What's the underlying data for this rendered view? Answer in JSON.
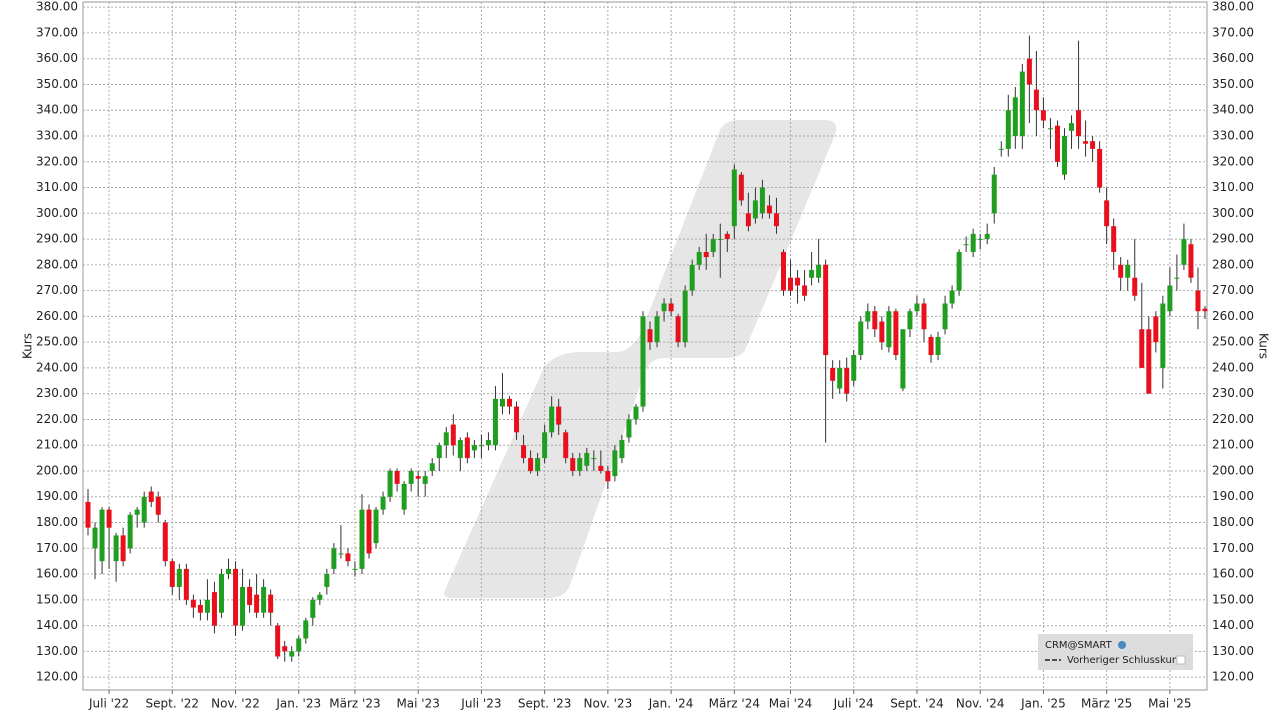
{
  "chart_data": {
    "type": "candlestick",
    "name": "CRM@SMART",
    "reference_line_label": "Vorheriger Schlusskurs",
    "y_label": "Kurs",
    "up_color": "#1f9e1f",
    "down_color": "#e8101c",
    "grid": true,
    "legend_position": "lower-right",
    "ylim": [
      115,
      382
    ],
    "yticks": [
      {
        "value": 120,
        "label": "120.00"
      },
      {
        "value": 130,
        "label": "130.00"
      },
      {
        "value": 140,
        "label": "140.00"
      },
      {
        "value": 150,
        "label": "150.00"
      },
      {
        "value": 160,
        "label": "160.00"
      },
      {
        "value": 170,
        "label": "170.00"
      },
      {
        "value": 180,
        "label": "180.00"
      },
      {
        "value": 190,
        "label": "190.00"
      },
      {
        "value": 200,
        "label": "200.00"
      },
      {
        "value": 210,
        "label": "210.00"
      },
      {
        "value": 220,
        "label": "220.00"
      },
      {
        "value": 230,
        "label": "230.00"
      },
      {
        "value": 240,
        "label": "240.00"
      },
      {
        "value": 250,
        "label": "250.00"
      },
      {
        "value": 260,
        "label": "260.00"
      },
      {
        "value": 270,
        "label": "270.00"
      },
      {
        "value": 280,
        "label": "280.00"
      },
      {
        "value": 290,
        "label": "290.00"
      },
      {
        "value": 300,
        "label": "300.00"
      },
      {
        "value": 310,
        "label": "310.00"
      },
      {
        "value": 320,
        "label": "320.00"
      },
      {
        "value": 330,
        "label": "330.00"
      },
      {
        "value": 340,
        "label": "340.00"
      },
      {
        "value": 350,
        "label": "350.00"
      },
      {
        "value": 360,
        "label": "360.00"
      },
      {
        "value": 370,
        "label": "370.00"
      },
      {
        "value": 380,
        "label": "380.00"
      }
    ],
    "categories": [
      null,
      null,
      null,
      "Juli '22",
      null,
      null,
      null,
      null,
      null,
      null,
      null,
      null,
      "Sept. '22",
      null,
      null,
      null,
      null,
      null,
      null,
      null,
      null,
      "Nov. '22",
      null,
      null,
      null,
      null,
      null,
      null,
      null,
      null,
      "Jan. '23",
      null,
      null,
      null,
      null,
      null,
      null,
      null,
      "März '23",
      null,
      null,
      null,
      null,
      null,
      null,
      null,
      null,
      "Mai '23",
      null,
      null,
      null,
      null,
      null,
      null,
      null,
      null,
      "Juli '23",
      null,
      null,
      null,
      null,
      null,
      null,
      null,
      null,
      "Sept. '23",
      null,
      null,
      null,
      null,
      null,
      null,
      null,
      null,
      "Nov. '23",
      null,
      null,
      null,
      null,
      null,
      null,
      null,
      null,
      "Jan. '24",
      null,
      null,
      null,
      null,
      null,
      null,
      null,
      null,
      "März '24",
      null,
      null,
      null,
      null,
      null,
      null,
      null,
      "Mai '24",
      null,
      null,
      null,
      null,
      null,
      null,
      null,
      null,
      "Juli '24",
      null,
      null,
      null,
      null,
      null,
      null,
      null,
      null,
      "Sept. '24",
      null,
      null,
      null,
      null,
      null,
      null,
      null,
      null,
      "Nov. '24",
      null,
      null,
      null,
      null,
      null,
      null,
      null,
      null,
      "Jan. '25",
      null,
      null,
      null,
      null,
      null,
      null,
      null,
      null,
      "März '25",
      null,
      null,
      null,
      null,
      null,
      null,
      null,
      null,
      "Mai '25",
      null,
      null,
      null,
      null,
      null
    ],
    "ohlc": [
      [
        188,
        193,
        175,
        178
      ],
      [
        170,
        180,
        158,
        178
      ],
      [
        165,
        186,
        160,
        185
      ],
      [
        185,
        186,
        162,
        178
      ],
      [
        165,
        176,
        157,
        175
      ],
      [
        175,
        178,
        163,
        165
      ],
      [
        170,
        184,
        168,
        183
      ],
      [
        183,
        186,
        178,
        185
      ],
      [
        180,
        192,
        178,
        190
      ],
      [
        192,
        194,
        186,
        188
      ],
      [
        190,
        192,
        180,
        183
      ],
      [
        180,
        181,
        163,
        165
      ],
      [
        165,
        166,
        152,
        155
      ],
      [
        155,
        164,
        150,
        162
      ],
      [
        162,
        164,
        148,
        150
      ],
      [
        150,
        152,
        143,
        147
      ],
      [
        148,
        150,
        142,
        145
      ],
      [
        145,
        158,
        142,
        150
      ],
      [
        153,
        157,
        137,
        140
      ],
      [
        145,
        162,
        143,
        160
      ],
      [
        160,
        166,
        158,
        162
      ],
      [
        162,
        165,
        136,
        140
      ],
      [
        140,
        162,
        138,
        155
      ],
      [
        155,
        158,
        145,
        148
      ],
      [
        152,
        160,
        143,
        145
      ],
      [
        145,
        158,
        143,
        155
      ],
      [
        152,
        154,
        140,
        145
      ],
      [
        140,
        141,
        127,
        128
      ],
      [
        132,
        134,
        126,
        130
      ],
      [
        128,
        132,
        126,
        130
      ],
      [
        130,
        136,
        128,
        135
      ],
      [
        135,
        143,
        133,
        142
      ],
      [
        143,
        151,
        140,
        150
      ],
      [
        150,
        153,
        148,
        152
      ],
      [
        155,
        162,
        152,
        160
      ],
      [
        162,
        172,
        160,
        170
      ],
      [
        168,
        179,
        166,
        168
      ],
      [
        168,
        170,
        163,
        165
      ],
      [
        162,
        165,
        159,
        162
      ],
      [
        162,
        191,
        160,
        185
      ],
      [
        185,
        187,
        166,
        168
      ],
      [
        172,
        186,
        170,
        185
      ],
      [
        185,
        192,
        183,
        190
      ],
      [
        190,
        201,
        188,
        200
      ],
      [
        200,
        201,
        192,
        195
      ],
      [
        185,
        196,
        183,
        195
      ],
      [
        195,
        201,
        192,
        200
      ],
      [
        198,
        200,
        190,
        197
      ],
      [
        195,
        200,
        190,
        198
      ],
      [
        200,
        205,
        198,
        203
      ],
      [
        205,
        211,
        200,
        210
      ],
      [
        210,
        217,
        205,
        215
      ],
      [
        218,
        222,
        206,
        210
      ],
      [
        205,
        213,
        200,
        212
      ],
      [
        213,
        215,
        203,
        205
      ],
      [
        208,
        212,
        205,
        210
      ],
      [
        210,
        214,
        205,
        210
      ],
      [
        210,
        215,
        208,
        212
      ],
      [
        210,
        233,
        208,
        228
      ],
      [
        225,
        238,
        222,
        228
      ],
      [
        228,
        229,
        222,
        225
      ],
      [
        225,
        227,
        212,
        215
      ],
      [
        210,
        214,
        203,
        205
      ],
      [
        205,
        208,
        199,
        200
      ],
      [
        200,
        207,
        198,
        205
      ],
      [
        205,
        218,
        203,
        215
      ],
      [
        215,
        229,
        213,
        225
      ],
      [
        225,
        228,
        214,
        218
      ],
      [
        215,
        216,
        203,
        205
      ],
      [
        205,
        207,
        198,
        200
      ],
      [
        200,
        207,
        198,
        205
      ],
      [
        202,
        209,
        200,
        207
      ],
      [
        205,
        208,
        200,
        205
      ],
      [
        202,
        208,
        199,
        200
      ],
      [
        200,
        202,
        193,
        196
      ],
      [
        198,
        210,
        196,
        208
      ],
      [
        205,
        214,
        203,
        212
      ],
      [
        213,
        222,
        211,
        220
      ],
      [
        220,
        226,
        218,
        225
      ],
      [
        225,
        262,
        223,
        260
      ],
      [
        255,
        258,
        247,
        250
      ],
      [
        250,
        262,
        248,
        260
      ],
      [
        262,
        267,
        258,
        265
      ],
      [
        265,
        267,
        260,
        262
      ],
      [
        260,
        261,
        248,
        250
      ],
      [
        250,
        272,
        248,
        270
      ],
      [
        270,
        282,
        268,
        280
      ],
      [
        280,
        287,
        278,
        285
      ],
      [
        285,
        292,
        278,
        283
      ],
      [
        285,
        292,
        283,
        290
      ],
      [
        290,
        296,
        275,
        290
      ],
      [
        292,
        293,
        285,
        290
      ],
      [
        295,
        319,
        290,
        317
      ],
      [
        315,
        316,
        303,
        305
      ],
      [
        300,
        308,
        293,
        295
      ],
      [
        298,
        310,
        296,
        305
      ],
      [
        300,
        313,
        298,
        310
      ],
      [
        303,
        307,
        298,
        300
      ],
      [
        300,
        306,
        292,
        295
      ],
      [
        285,
        286,
        268,
        270
      ],
      [
        275,
        282,
        268,
        270
      ],
      [
        275,
        278,
        265,
        272
      ],
      [
        272,
        278,
        266,
        268
      ],
      [
        275,
        285,
        272,
        278
      ],
      [
        275,
        290,
        273,
        280
      ],
      [
        280,
        282,
        211,
        245
      ],
      [
        240,
        243,
        228,
        235
      ],
      [
        232,
        243,
        230,
        240
      ],
      [
        240,
        244,
        227,
        230
      ],
      [
        235,
        247,
        233,
        245
      ],
      [
        245,
        260,
        243,
        258
      ],
      [
        258,
        265,
        255,
        262
      ],
      [
        262,
        264,
        252,
        255
      ],
      [
        258,
        260,
        247,
        250
      ],
      [
        248,
        264,
        246,
        262
      ],
      [
        262,
        263,
        243,
        245
      ],
      [
        232,
        255,
        231,
        255
      ],
      [
        255,
        263,
        252,
        262
      ],
      [
        262,
        268,
        260,
        265
      ],
      [
        265,
        267,
        250,
        255
      ],
      [
        252,
        253,
        242,
        245
      ],
      [
        245,
        254,
        243,
        252
      ],
      [
        255,
        268,
        253,
        265
      ],
      [
        265,
        272,
        263,
        270
      ],
      [
        270,
        286,
        268,
        285
      ],
      [
        288,
        291,
        285,
        288
      ],
      [
        285,
        294,
        283,
        292
      ],
      [
        290,
        292,
        286,
        290
      ],
      [
        290,
        296,
        288,
        292
      ],
      [
        300,
        318,
        296,
        315
      ],
      [
        325,
        328,
        322,
        325
      ],
      [
        325,
        346,
        322,
        340
      ],
      [
        330,
        349,
        325,
        345
      ],
      [
        330,
        358,
        325,
        355
      ],
      [
        360,
        369,
        335,
        350
      ],
      [
        348,
        363,
        330,
        340
      ],
      [
        340,
        345,
        333,
        336
      ],
      [
        333,
        337,
        325,
        333
      ],
      [
        334,
        336,
        318,
        320
      ],
      [
        315,
        333,
        313,
        330
      ],
      [
        332,
        338,
        325,
        335
      ],
      [
        340,
        367,
        325,
        330
      ],
      [
        328,
        336,
        322,
        327
      ],
      [
        328,
        330,
        320,
        325
      ],
      [
        325,
        328,
        308,
        310
      ],
      [
        305,
        310,
        288,
        295
      ],
      [
        295,
        298,
        278,
        285
      ],
      [
        280,
        283,
        270,
        275
      ],
      [
        275,
        282,
        270,
        280
      ],
      [
        275,
        290,
        266,
        268
      ],
      [
        255,
        273,
        240,
        240
      ],
      [
        255,
        260,
        230,
        230
      ],
      [
        260,
        262,
        246,
        250
      ],
      [
        240,
        268,
        232,
        265
      ],
      [
        262,
        279,
        260,
        272
      ],
      [
        275,
        284,
        270,
        275
      ],
      [
        280,
        296,
        278,
        290
      ],
      [
        288,
        290,
        273,
        275
      ],
      [
        270,
        279,
        255,
        262
      ],
      [
        263,
        264,
        259,
        262
      ]
    ]
  }
}
